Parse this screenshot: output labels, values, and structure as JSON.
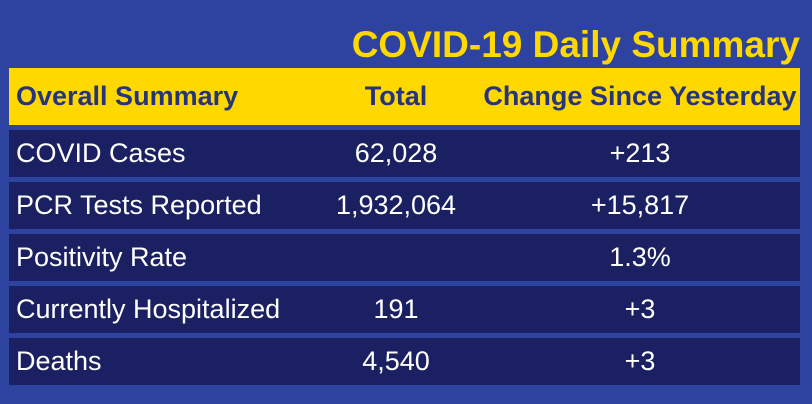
{
  "title": "COVID-19 Daily Summary",
  "colors": {
    "background_blue": "#2e42a0",
    "row_navy": "#1a2062",
    "accent_yellow": "#ffd800",
    "header_text_blue": "#26337d",
    "row_text_white": "#ffffff"
  },
  "table": {
    "headers": [
      "Overall Summary",
      "Total",
      "Change Since Yesterday"
    ],
    "rows": [
      {
        "label": "COVID Cases",
        "total": "62,028",
        "change": "+213"
      },
      {
        "label": "PCR Tests Reported",
        "total": "1,932,064",
        "change": "+15,817"
      },
      {
        "label": "Positivity Rate",
        "total": "",
        "change": "1.3%"
      },
      {
        "label": "Currently Hospitalized",
        "total": "191",
        "change": "+3"
      },
      {
        "label": "Deaths",
        "total": "4,540",
        "change": "+3"
      }
    ]
  },
  "chart_data": {
    "type": "table",
    "title": "COVID-19 Daily Summary",
    "columns": [
      "Overall Summary",
      "Total",
      "Change Since Yesterday"
    ],
    "rows": [
      [
        "COVID Cases",
        "62,028",
        "+213"
      ],
      [
        "PCR Tests Reported",
        "1,932,064",
        "+15,817"
      ],
      [
        "Positivity Rate",
        "",
        "1.3%"
      ],
      [
        "Currently Hospitalized",
        "191",
        "+3"
      ],
      [
        "Deaths",
        "4,540",
        "+3"
      ]
    ],
    "numeric": {
      "totals": [
        62028,
        1932064,
        null,
        191,
        4540
      ],
      "changes": [
        213,
        15817,
        null,
        3,
        3
      ],
      "positivity_rate_percent": 1.3
    },
    "layout": {
      "header_background": "#ffd800",
      "row_background": "#1a2062",
      "page_background": "#2e42a0",
      "title_align": "right",
      "column_alignment": [
        "left",
        "center",
        "center"
      ]
    }
  }
}
